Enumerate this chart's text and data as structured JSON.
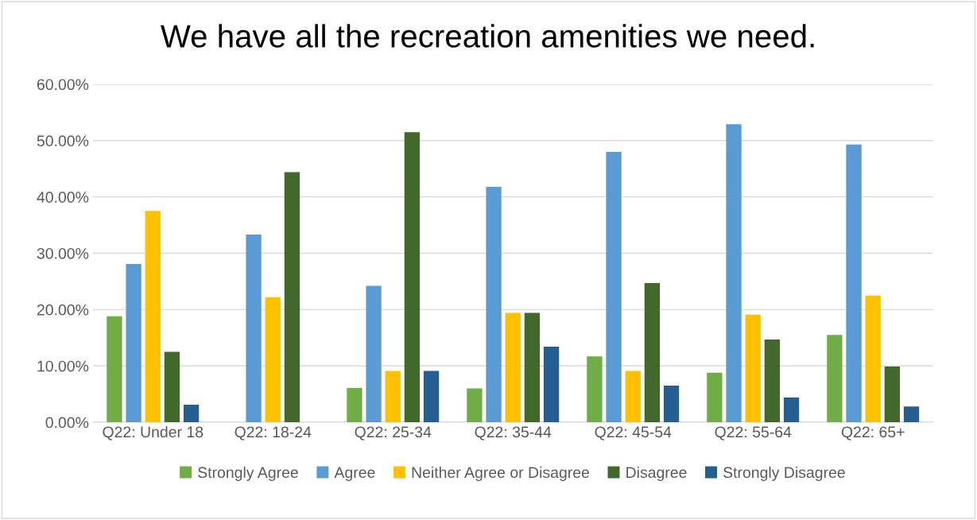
{
  "chart_data": {
    "type": "bar",
    "title": "We have all the recreation amenities we need.",
    "categories": [
      "Q22: Under 18",
      "Q22: 18-24",
      "Q22: 25-34",
      "Q22: 35-44",
      "Q22: 45-54",
      "Q22: 55-64",
      "Q22: 65+"
    ],
    "series": [
      {
        "name": "Strongly Agree",
        "color": "#70ad47",
        "values": [
          18.8,
          0,
          6.1,
          6.0,
          11.7,
          8.8,
          15.5
        ]
      },
      {
        "name": "Agree",
        "color": "#5b9bd5",
        "values": [
          28.1,
          33.3,
          24.2,
          41.8,
          48.0,
          52.9,
          49.3
        ]
      },
      {
        "name": "Neither Agree or Disagree",
        "color": "#ffc000",
        "values": [
          37.5,
          22.2,
          9.1,
          19.4,
          9.1,
          19.1,
          22.5
        ]
      },
      {
        "name": "Disagree",
        "color": "#43682b",
        "values": [
          12.5,
          44.4,
          51.5,
          19.4,
          24.7,
          14.7,
          9.9
        ]
      },
      {
        "name": "Strongly Disagree",
        "color": "#255e91",
        "values": [
          3.1,
          0,
          9.1,
          13.4,
          6.5,
          4.4,
          2.8
        ]
      }
    ],
    "ylim": [
      0,
      60
    ],
    "yticks": [
      {
        "value": 0,
        "label": "0.00%"
      },
      {
        "value": 10,
        "label": "10.00%"
      },
      {
        "value": 20,
        "label": "20.00%"
      },
      {
        "value": 30,
        "label": "30.00%"
      },
      {
        "value": 40,
        "label": "40.00%"
      },
      {
        "value": 50,
        "label": "50.00%"
      },
      {
        "value": 60,
        "label": "60.00%"
      }
    ],
    "grid": "y",
    "legend": "bottom"
  }
}
